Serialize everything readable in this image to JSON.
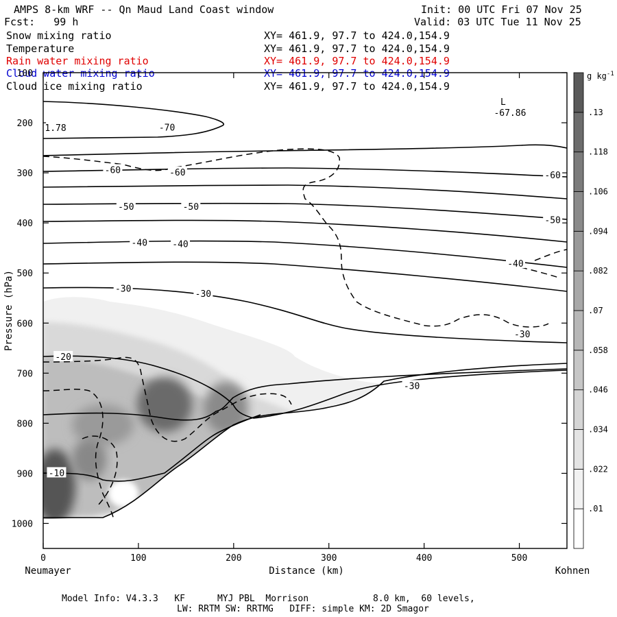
{
  "header": {
    "title": "AMPS 8-km WRF -- Qn Maud Land Coast window",
    "fcst": "Fcst:   99 h",
    "init": "Init: 00 UTC Fri 07 Nov 25",
    "valid": "Valid: 03 UTC Tue 11 Nov 25"
  },
  "fields": [
    {
      "name": "Snow mixing ratio",
      "xy": "XY= 461.9, 97.7 to 424.0,154.9",
      "color": "#000000"
    },
    {
      "name": "Temperature",
      "xy": "XY= 461.9, 97.7 to 424.0,154.9",
      "color": "#000000"
    },
    {
      "name": "Rain water mixing ratio",
      "xy": "XY= 461.9, 97.7 to 424.0,154.9",
      "color": "#e00000"
    },
    {
      "name": "Cloud water mixing ratio",
      "xy": "XY= 461.9, 97.7 to 424.0,154.9",
      "color": "#0000d0"
    },
    {
      "name": "Cloud ice mixing ratio",
      "xy": "XY= 461.9, 97.7 to 424.0,154.9",
      "color": "#000000"
    }
  ],
  "chart_data": {
    "type": "contour",
    "ylabel": "Pressure (hPa)",
    "xlabel": "Distance (km)",
    "x_left_label": "Neumayer",
    "x_right_label": "Kohnen",
    "xlim": [
      0,
      550
    ],
    "ylim": [
      1050,
      100
    ],
    "x_ticks": [
      0,
      100,
      200,
      300,
      400,
      500
    ],
    "y_ticks": [
      100,
      200,
      300,
      400,
      500,
      600,
      700,
      800,
      900,
      1000
    ],
    "colorbar": {
      "unit": "g kg",
      "unit_sup": "-1",
      "levels": [
        ".01",
        ".022",
        ".034",
        ".046",
        ".058",
        ".07",
        ".082",
        ".094",
        ".106",
        ".118",
        ".13"
      ],
      "colors": [
        "#ffffff",
        "#f2f2f2",
        "#e4e4e4",
        "#d5d5d5",
        "#c6c6c6",
        "#b7b7b7",
        "#a8a8a8",
        "#999999",
        "#8a8a8a",
        "#7b7b7b",
        "#6c6c6c",
        "#5a5a5a"
      ]
    },
    "temperature_labels": [
      {
        "text": "-70",
        "x": 130,
        "p": 210
      },
      {
        "text": "-60",
        "x": 73,
        "p": 295
      },
      {
        "text": "-60",
        "x": 141,
        "p": 300
      },
      {
        "text": "-60",
        "x": 535,
        "p": 305
      },
      {
        "text": "-50",
        "x": 87,
        "p": 368
      },
      {
        "text": "-50",
        "x": 155,
        "p": 368
      },
      {
        "text": "-50",
        "x": 535,
        "p": 395
      },
      {
        "text": "-40",
        "x": 101,
        "p": 440
      },
      {
        "text": "-40",
        "x": 144,
        "p": 443
      },
      {
        "text": "-40",
        "x": 496,
        "p": 482
      },
      {
        "text": "-30",
        "x": 84,
        "p": 532
      },
      {
        "text": "-30",
        "x": 168,
        "p": 542
      },
      {
        "text": "-30",
        "x": 503,
        "p": 623
      },
      {
        "text": "-30",
        "x": 387,
        "p": 726
      },
      {
        "text": "-20",
        "x": 21,
        "p": 668
      },
      {
        "text": "-10",
        "x": 14,
        "p": 900
      },
      {
        "text": "1.78",
        "x": 13,
        "p": 211
      }
    ],
    "low_marker": {
      "letter": "L",
      "value": "-67.86",
      "x": 483,
      "p": 145
    }
  },
  "footer": {
    "model_info": "Model Info: V4.3.3   KF      MYJ PBL  Morrison            8.0 km,  60 levels,",
    "physics": "LW: RRTM SW: RRTMG   DIFF: simple KM: 2D Smagor"
  }
}
